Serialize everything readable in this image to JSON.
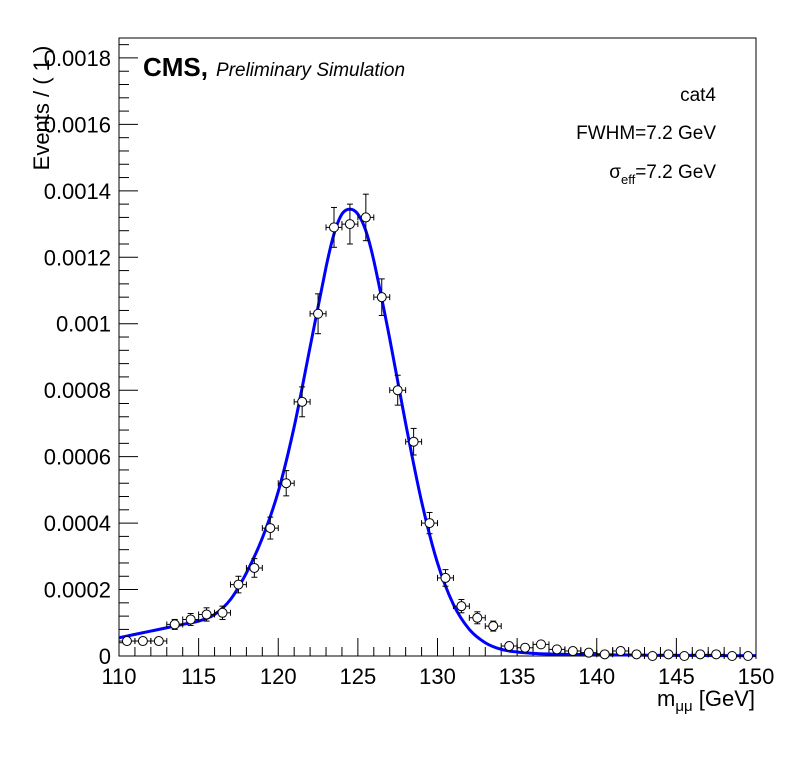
{
  "chart_data": {
    "type": "scatter",
    "xlabel": "m",
    "xlabel_sub": "μμ",
    "xlabel_unit": " [GeV]",
    "ylabel": "Events / ( 1 )",
    "xlim": [
      110,
      150
    ],
    "ylim": [
      0,
      0.00186
    ],
    "x_ticks": [
      110,
      115,
      120,
      125,
      130,
      135,
      140,
      145,
      150
    ],
    "x_tick_labels": [
      "110",
      "115",
      "120",
      "125",
      "130",
      "135",
      "140",
      "145",
      "150"
    ],
    "y_ticks": [
      0,
      0.0002,
      0.0004,
      0.0006,
      0.0008,
      0.001,
      0.0012,
      0.0014,
      0.0016,
      0.0018
    ],
    "y_tick_labels": [
      "0",
      "0.0002",
      "0.0004",
      "0.0006",
      "0.0008",
      "0.001",
      "0.0012",
      "0.0014",
      "0.0016",
      "0.0018"
    ],
    "grid": false,
    "series": [
      {
        "kind": "points",
        "x": [
          110.5,
          111.5,
          112.5,
          113.5,
          114.5,
          115.5,
          116.5,
          117.5,
          118.5,
          119.5,
          120.5,
          121.5,
          122.5,
          123.5,
          124.5,
          125.5,
          126.5,
          127.5,
          128.5,
          129.5,
          130.5,
          131.5,
          132.5,
          133.5,
          134.5,
          135.5,
          136.5,
          137.5,
          138.5,
          139.5,
          140.5,
          141.5,
          142.5,
          143.5,
          144.5,
          145.5,
          146.5,
          147.5,
          148.5,
          149.5
        ],
        "y": [
          4.5e-05,
          4.5e-05,
          4.5e-05,
          9.5e-05,
          0.00011,
          0.000125,
          0.00013,
          0.000215,
          0.000265,
          0.000385,
          0.00052,
          0.000765,
          0.00103,
          0.00129,
          0.0013,
          0.00132,
          0.00108,
          0.0008,
          0.000645,
          0.0004,
          0.000235,
          0.00015,
          0.000115,
          9e-05,
          3e-05,
          2.5e-05,
          3.5e-05,
          2e-05,
          1.5e-05,
          1e-05,
          5e-06,
          1.5e-05,
          5e-06,
          0.0,
          5e-06,
          0.0,
          5e-06,
          5e-06,
          0.0,
          0.0
        ],
        "yerr": [
          1e-05,
          1e-05,
          1e-05,
          1.5e-05,
          1.8e-05,
          2e-05,
          2e-05,
          2.5e-05,
          2.8e-05,
          3.3e-05,
          3.8e-05,
          4.5e-05,
          6e-05,
          6e-05,
          6e-05,
          7e-05,
          5.5e-05,
          4.5e-05,
          4e-05,
          3.2e-05,
          2.5e-05,
          2e-05,
          1.8e-05,
          1.5e-05,
          8e-06,
          8e-06,
          8e-06,
          6e-06,
          6e-06,
          5e-06,
          4e-06,
          5e-06,
          4e-06,
          3e-06,
          4e-06,
          3e-06,
          4e-06,
          4e-06,
          3e-06,
          3e-06
        ],
        "color": "#000000"
      },
      {
        "kind": "fit",
        "color": "#0000ff",
        "x": [
          110,
          111,
          112,
          113,
          114,
          115,
          116,
          117,
          118,
          119,
          120,
          121,
          122,
          123,
          123.5,
          124,
          124.5,
          125,
          125.5,
          126,
          127,
          128,
          129,
          130,
          131,
          132,
          133,
          134,
          135,
          136,
          137,
          138,
          140,
          142,
          144,
          146,
          148,
          150
        ],
        "y": [
          5.5e-05,
          6.5e-05,
          7.5e-05,
          8.5e-05,
          9.5e-05,
          0.000105,
          0.000125,
          0.00017,
          0.00025,
          0.000355,
          0.000495,
          0.00069,
          0.00093,
          0.00117,
          0.00127,
          0.00133,
          0.001345,
          0.00133,
          0.00128,
          0.00119,
          0.000955,
          0.0007,
          0.000465,
          0.00028,
          0.000155,
          8e-05,
          4e-05,
          2e-05,
          1.2e-05,
          8e-06,
          6e-06,
          5e-06,
          4e-06,
          3e-06,
          2e-06,
          2e-06,
          1e-06,
          1e-06
        ]
      }
    ]
  },
  "labels": {
    "cms": "CMS",
    "cms_comma": ",",
    "preliminary": "Preliminary Simulation",
    "category": "cat4",
    "fwhm": "FWHM=7.2 GeV",
    "sigma_symbol": "σ",
    "sigma_sub": "eff",
    "sigma_value": "=7.2 GeV"
  }
}
